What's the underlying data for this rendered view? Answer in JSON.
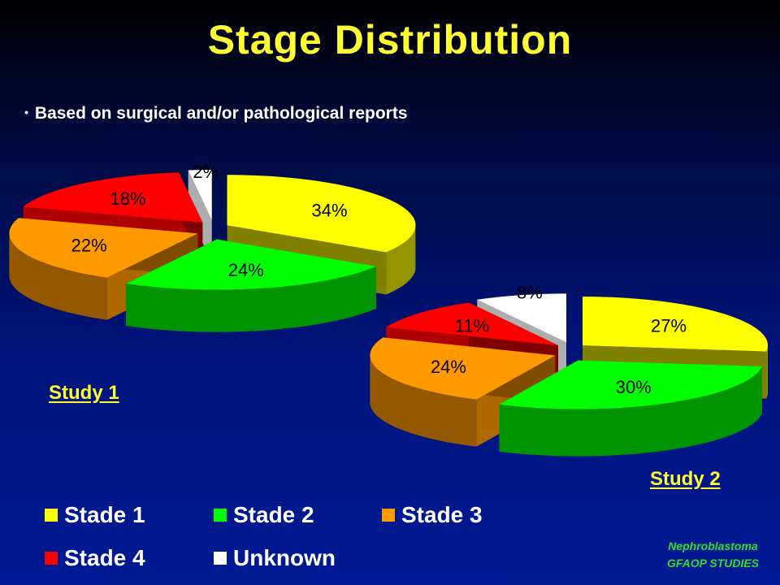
{
  "title": "Stage Distribution",
  "bullet": "Based on surgical and/or pathological reports",
  "colors": {
    "stade1": "#ffff00",
    "stade2": "#00ff00",
    "stade3": "#ff9900",
    "stade4": "#ff0000",
    "unknown": "#ffffff",
    "title": "#ffff33",
    "credit": "#33dd33"
  },
  "chart_data": [
    {
      "type": "pie",
      "title": "Study 1",
      "categories": [
        "Stade 1",
        "Stade 2",
        "Stade 3",
        "Stade 4",
        "Unknown"
      ],
      "values": [
        34,
        24,
        22,
        18,
        2
      ],
      "labels": [
        "34%",
        "24%",
        "22%",
        "18%",
        "2%"
      ],
      "style": "3d-exploded"
    },
    {
      "type": "pie",
      "title": "Study 2",
      "categories": [
        "Stade 1",
        "Stade 2",
        "Stade 3",
        "Stade 4",
        "Unknown"
      ],
      "values": [
        27,
        30,
        24,
        11,
        8
      ],
      "labels": [
        "27%",
        "30%",
        "24%",
        "11%",
        "8%"
      ],
      "style": "3d-exploded"
    }
  ],
  "legend": [
    {
      "label": "Stade 1",
      "color": "#ffff00"
    },
    {
      "label": "Stade 2",
      "color": "#00ff00"
    },
    {
      "label": "Stade 3",
      "color": "#ff9900"
    },
    {
      "label": "Stade 4",
      "color": "#ff0000"
    },
    {
      "label": "Unknown",
      "color": "#ffffff"
    }
  ],
  "credit": {
    "line1": "Nephroblastoma",
    "line2": "GFAOP STUDIES"
  }
}
